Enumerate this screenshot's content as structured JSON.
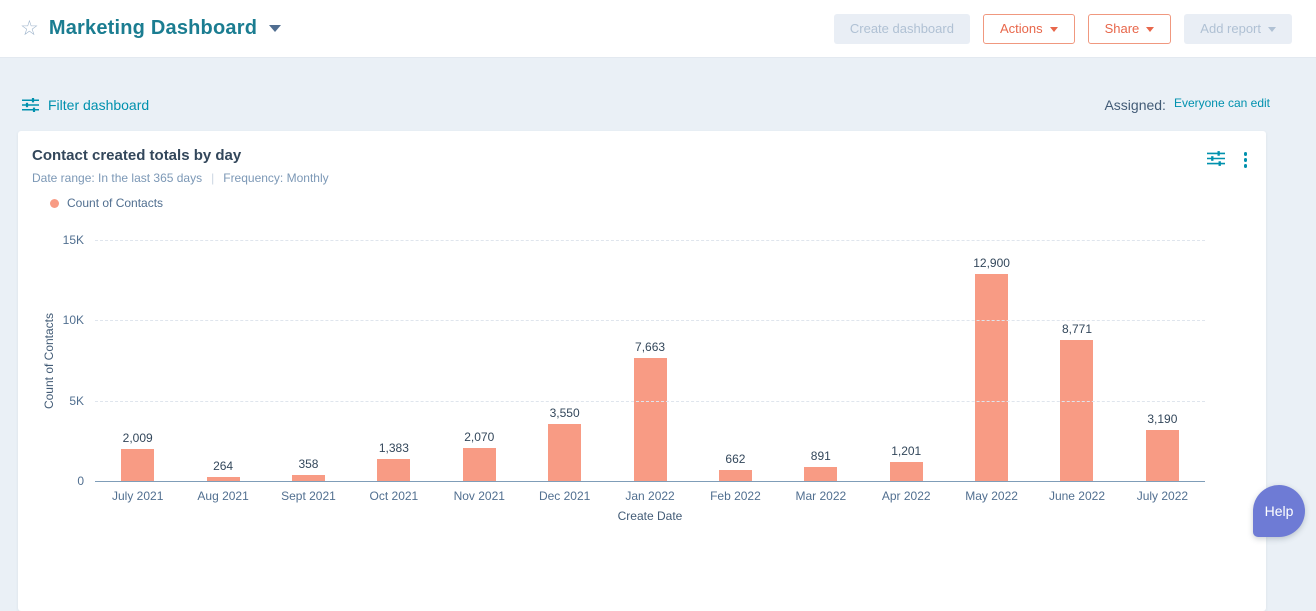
{
  "icons": {
    "star": "☆"
  },
  "header": {
    "title": "Marketing Dashboard",
    "buttons": {
      "create_dashboard": "Create dashboard",
      "actions": "Actions",
      "share": "Share",
      "add_report": "Add report"
    }
  },
  "filter_bar": {
    "filter_label": "Filter dashboard",
    "assigned_label": "Assigned:",
    "assigned_value": "Everyone can edit"
  },
  "card": {
    "title": "Contact created totals by day",
    "date_range": "Date range: In the last 365 days",
    "separator": "|",
    "frequency": "Frequency: Monthly",
    "legend_label": "Count of Contacts"
  },
  "chart_data": {
    "type": "bar",
    "title": "Contact created totals by day",
    "categories": [
      "July 2021",
      "Aug 2021",
      "Sept 2021",
      "Oct 2021",
      "Nov 2021",
      "Dec 2021",
      "Jan 2022",
      "Feb 2022",
      "Mar 2022",
      "Apr 2022",
      "May 2022",
      "June 2022",
      "July 2022"
    ],
    "values": [
      2009,
      264,
      358,
      1383,
      2070,
      3550,
      7663,
      662,
      891,
      1201,
      12900,
      8771,
      3190
    ],
    "value_labels": [
      "2,009",
      "264",
      "358",
      "1,383",
      "2,070",
      "3,550",
      "7,663",
      "662",
      "891",
      "1,201",
      "12,900",
      "8,771",
      "3,190"
    ],
    "series_name": "Count of Contacts",
    "xlabel": "Create Date",
    "ylabel": "Count of Contacts",
    "ylim": [
      0,
      15000
    ],
    "yticks": [
      "0",
      "5K",
      "10K",
      "15K"
    ],
    "grid": true,
    "legend_position": "top-left",
    "bar_color": "#f89b84"
  },
  "help_button": {
    "label": "Help"
  },
  "colors": {
    "accent_teal": "#0091ae",
    "title_teal": "#1b7d91",
    "coral_button": "#e8674b",
    "bar": "#f89b84",
    "text_dark": "#33475b",
    "text_muted": "#7c98b6",
    "axis_text": "#516f90",
    "help_blue": "#6e7bd5",
    "page_bg": "#eaf0f6"
  }
}
